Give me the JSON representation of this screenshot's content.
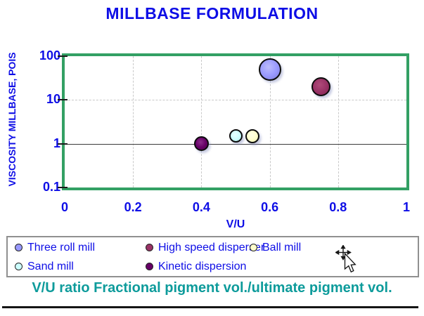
{
  "title": "MILLBASE FORMULATION",
  "colors": {
    "accent_blue": "#0E0EE6",
    "frame_green": "#33A064",
    "caption_teal": "#0D9B9B",
    "grid_gray": "#C9C9C9"
  },
  "chart_data": {
    "type": "scatter",
    "title": "MILLBASE FORMULATION",
    "xlabel": "V/U",
    "ylabel": "VISCOSITY MILLBASE, POIS",
    "x_ticks": [
      "0",
      "0.2",
      "0.4",
      "0.6",
      "0.8",
      "1"
    ],
    "y_ticks": [
      "100",
      "10",
      "1",
      "0.1"
    ],
    "y_scale": "log",
    "xlim": [
      0,
      1
    ],
    "ylim": [
      0.1,
      100
    ],
    "grid": "light dashed verticals each 0.2; dashed line at y=10; solid line at y=1",
    "points": [
      {
        "name": "Three roll mill",
        "x": 0.6,
        "y": 50,
        "r": 16,
        "color": "#9999FF",
        "highlight": "#BDBDFB",
        "edge": "#7C7CD4"
      },
      {
        "name": "High speed disperser",
        "x": 0.75,
        "y": 20,
        "r": 13.5,
        "color": "#993366",
        "highlight": "#AF4A79",
        "edge": "#801F4E"
      },
      {
        "name": "Sand mill",
        "x": 0.5,
        "y": 1.5,
        "r": 9.5,
        "color": "#CCFFFF",
        "highlight": "#E8FFFF",
        "edge": "#ABE0E4"
      },
      {
        "name": "Ball mill",
        "x": 0.55,
        "y": 1.5,
        "r": 10,
        "color": "#FFFFCC",
        "highlight": "#FFFFE6",
        "edge": "#E3E3AC"
      },
      {
        "name": "Kinetic dispersion",
        "x": 0.4,
        "y": 1.0,
        "r": 10.5,
        "color": "#660066",
        "highlight": "#8A2B8A",
        "edge": "#4D004D"
      }
    ]
  },
  "legend": {
    "rows": [
      [
        {
          "label": "Three roll mill",
          "color": "#9999FF"
        },
        {
          "label": "High speed disperser",
          "color": "#993366"
        },
        {
          "label": "Ball mill",
          "color": "#FFFFCC"
        }
      ],
      [
        {
          "label": "Sand mill",
          "color": "#CCFFFF"
        },
        {
          "label": "Kinetic dispersion",
          "color": "#660066"
        }
      ]
    ]
  },
  "caption": "V/U ratio Fractional pigment vol./ultimate pigment vol."
}
